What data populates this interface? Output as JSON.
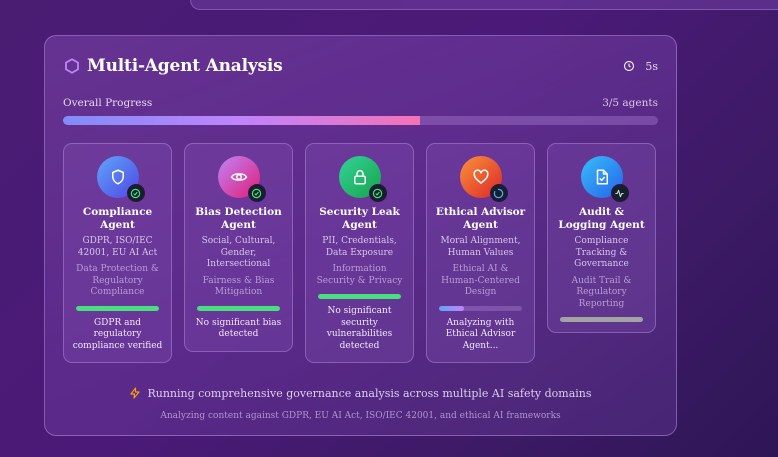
{
  "panel": {
    "title": "Multi-Agent Analysis",
    "elapsed": "5s",
    "progress_label": "Overall Progress",
    "progress_count": "3/5 agents",
    "progress_percent": 60
  },
  "agents": [
    {
      "name": "Compliance Agent",
      "focus": "GDPR, ISO/IEC 42001, EU AI Act",
      "domain": "Data Protection & Regulatory Compliance",
      "status": "complete",
      "icon": "shield-icon",
      "progress": 100,
      "result": "GDPR and regulatory compliance verified",
      "colors": [
        "#60a5fa",
        "#4f46e5"
      ]
    },
    {
      "name": "Bias Detection Agent",
      "focus": "Social, Cultural, Gender, Intersectional",
      "domain": "Fairness & Bias Mitigation",
      "status": "complete",
      "icon": "eye-icon",
      "progress": 100,
      "result": "No significant bias detected",
      "colors": [
        "#c084fc",
        "#e11d74"
      ]
    },
    {
      "name": "Security Leak Agent",
      "focus": "PII, Credentials, Data Exposure",
      "domain": "Information Security & Privacy",
      "status": "complete",
      "icon": "lock-icon",
      "progress": 100,
      "result": "No significant security vulnerabilities detected",
      "colors": [
        "#34d399",
        "#16a34a"
      ]
    },
    {
      "name": "Ethical Advisor Agent",
      "focus": "Moral Alignment, Human Values",
      "domain": "Ethical AI & Human-Centered Design",
      "status": "running",
      "icon": "heart-icon",
      "progress": 30,
      "result": "Analyzing with Ethical Advisor Agent...",
      "colors": [
        "#fb923c",
        "#dc2626"
      ]
    },
    {
      "name": "Audit & Logging Agent",
      "focus": "Compliance Tracking & Governance",
      "domain": "Audit Trail & Regulatory Reporting",
      "status": "pending",
      "icon": "file-check-icon",
      "progress": 0,
      "result": "",
      "colors": [
        "#38bdf8",
        "#2563eb"
      ]
    }
  ],
  "footer": {
    "message": "Running comprehensive governance analysis across multiple AI safety domains",
    "submessage": "Analyzing content against GDPR, EU AI Act, ISO/IEC 42001, and ethical AI frameworks"
  },
  "colors": {
    "complete": "#4ade80",
    "pending": "#a3a3a3",
    "running_gradient": [
      "#60a5fa",
      "#c084fc"
    ],
    "accent": "#c084fc"
  }
}
